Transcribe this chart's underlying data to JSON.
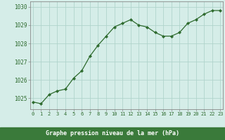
{
  "x": [
    0,
    1,
    2,
    3,
    4,
    5,
    6,
    7,
    8,
    9,
    10,
    11,
    12,
    13,
    14,
    15,
    16,
    17,
    18,
    19,
    20,
    21,
    22,
    23
  ],
  "y": [
    1024.8,
    1024.7,
    1025.2,
    1025.4,
    1025.5,
    1026.1,
    1026.5,
    1027.3,
    1027.9,
    1028.4,
    1028.9,
    1029.1,
    1029.3,
    1029.0,
    1028.9,
    1028.6,
    1028.4,
    1028.4,
    1028.6,
    1029.1,
    1029.3,
    1029.6,
    1029.8,
    1029.8
  ],
  "ylim": [
    1024.4,
    1030.3
  ],
  "yticks": [
    1025,
    1026,
    1027,
    1028,
    1029,
    1030
  ],
  "xticks": [
    0,
    1,
    2,
    3,
    4,
    5,
    6,
    7,
    8,
    9,
    10,
    11,
    12,
    13,
    14,
    15,
    16,
    17,
    18,
    19,
    20,
    21,
    22,
    23
  ],
  "line_color": "#2d6a2d",
  "marker_color": "#2d6a2d",
  "bg_color": "#d5ede8",
  "grid_color": "#b0d4cc",
  "xlabel": "Graphe pression niveau de la mer (hPa)",
  "xlabel_color": "#1a5c1a",
  "tick_color": "#2d6a2d",
  "spine_color": "#888888",
  "label_bg": "#3a7a3a",
  "label_fg": "#ffffff"
}
